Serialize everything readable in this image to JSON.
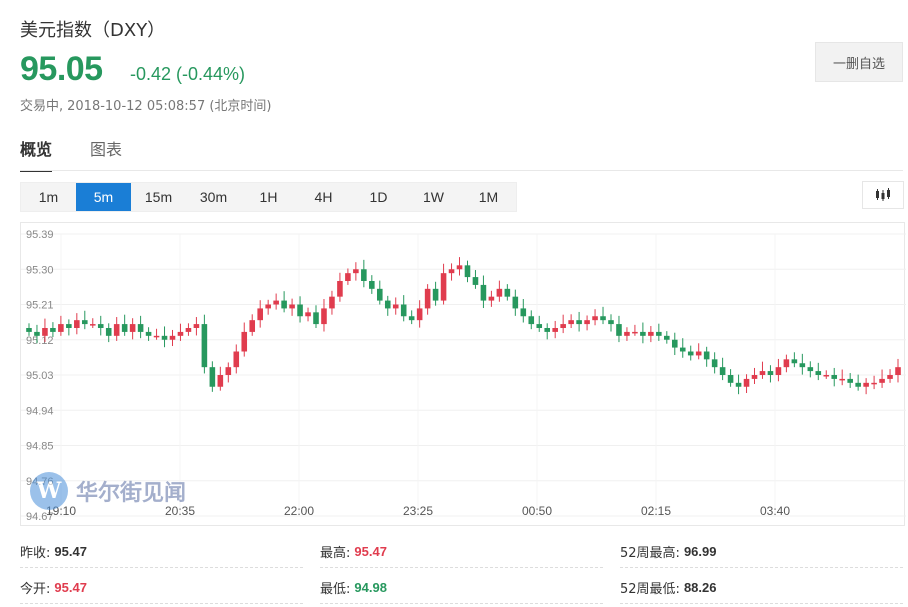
{
  "header": {
    "title": "美元指数（DXY）",
    "price": "95.05",
    "change": "-0.42 (-0.44%)",
    "status": "交易中,",
    "timestamp": "2018-10-12 05:08:57",
    "timezone": "(北京时间)",
    "fav_button": "一删自选"
  },
  "tabs": [
    {
      "label": "概览",
      "active": true
    },
    {
      "label": "图表",
      "active": false
    }
  ],
  "periods": [
    {
      "label": "1m",
      "active": false
    },
    {
      "label": "5m",
      "active": true
    },
    {
      "label": "15m",
      "active": false
    },
    {
      "label": "30m",
      "active": false
    },
    {
      "label": "1H",
      "active": false
    },
    {
      "label": "4H",
      "active": false
    },
    {
      "label": "1D",
      "active": false
    },
    {
      "label": "1W",
      "active": false
    },
    {
      "label": "1M",
      "active": false
    }
  ],
  "chart_type_icon": "candlestick-icon",
  "watermark": {
    "logo_letter": "W",
    "text": "华尔街见闻"
  },
  "colors": {
    "up": "#e03c4e",
    "down": "#27985e",
    "accent": "#1a7ed6"
  },
  "chart_data": {
    "type": "candlestick",
    "y_ticks": [
      "95.39",
      "95.30",
      "95.21",
      "95.12",
      "95.03",
      "94.94",
      "94.85",
      "94.76",
      "94.67"
    ],
    "ylim": [
      94.67,
      95.39
    ],
    "x_ticks": [
      "19:10",
      "20:35",
      "22:00",
      "23:25",
      "00:50",
      "02:15",
      "03:40"
    ],
    "grid": true,
    "closes": [
      95.14,
      95.13,
      95.15,
      95.14,
      95.16,
      95.15,
      95.17,
      95.16,
      95.16,
      95.15,
      95.13,
      95.16,
      95.14,
      95.16,
      95.14,
      95.13,
      95.13,
      95.12,
      95.13,
      95.14,
      95.15,
      95.16,
      95.05,
      95.0,
      95.03,
      95.05,
      95.09,
      95.14,
      95.17,
      95.2,
      95.21,
      95.22,
      95.2,
      95.21,
      95.18,
      95.19,
      95.16,
      95.2,
      95.23,
      95.27,
      95.29,
      95.3,
      95.27,
      95.25,
      95.22,
      95.2,
      95.21,
      95.18,
      95.17,
      95.2,
      95.25,
      95.22,
      95.29,
      95.3,
      95.31,
      95.28,
      95.26,
      95.22,
      95.23,
      95.25,
      95.23,
      95.2,
      95.18,
      95.16,
      95.15,
      95.14,
      95.15,
      95.16,
      95.17,
      95.16,
      95.17,
      95.18,
      95.17,
      95.16,
      95.13,
      95.14,
      95.14,
      95.13,
      95.14,
      95.13,
      95.12,
      95.1,
      95.09,
      95.08,
      95.09,
      95.07,
      95.05,
      95.03,
      95.01,
      95.0,
      95.02,
      95.03,
      95.04,
      95.03,
      95.05,
      95.07,
      95.06,
      95.05,
      95.04,
      95.03,
      95.03,
      95.02,
      95.02,
      95.01,
      95.0,
      95.01,
      95.01,
      95.02,
      95.03,
      95.05
    ],
    "open": 95.47,
    "prev_close": 95.47,
    "high": 95.47,
    "low": 94.98
  },
  "stats": [
    {
      "label": "昨收:",
      "value": "95.47",
      "tone": "neutral"
    },
    {
      "label": "最高:",
      "value": "95.47",
      "tone": "up"
    },
    {
      "label": "52周最高:",
      "value": "96.99",
      "tone": "neutral"
    },
    {
      "label": "今开:",
      "value": "95.47",
      "tone": "up"
    },
    {
      "label": "最低:",
      "value": "94.98",
      "tone": "down"
    },
    {
      "label": "52周最低:",
      "value": "88.26",
      "tone": "neutral"
    }
  ]
}
